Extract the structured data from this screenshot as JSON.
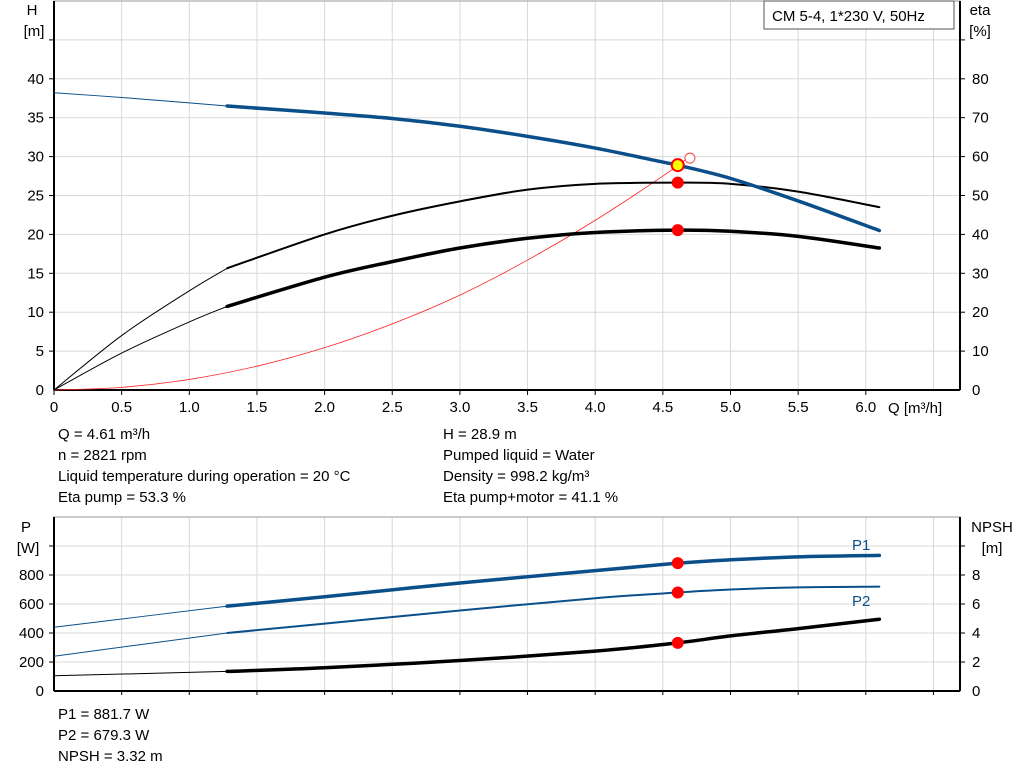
{
  "chart_data": [
    {
      "type": "line",
      "title_box": "CM 5-4, 1*230 V, 50Hz",
      "xlabel": "Q [m³/h]",
      "ylabel": "H",
      "yunit": "[m]",
      "y2label": "eta",
      "y2unit": "[%]",
      "xlim": [
        0,
        6.7
      ],
      "ylim": [
        0,
        50
      ],
      "y2lim": [
        0,
        100
      ],
      "xticks": [
        "0",
        "0.5",
        "1.0",
        "1.5",
        "2.0",
        "2.5",
        "3.0",
        "3.5",
        "4.0",
        "4.5",
        "5.0",
        "5.5",
        "6.0"
      ],
      "yticks": [
        0,
        5,
        10,
        15,
        20,
        25,
        30,
        35,
        40
      ],
      "y2ticks": [
        0,
        10,
        20,
        30,
        40,
        50,
        60,
        70,
        80
      ],
      "grid": true,
      "series": [
        {
          "axis": "H",
          "color": "#0b4f8a",
          "x": [
            0,
            0.5,
            1,
            1.28,
            2,
            2.5,
            3,
            3.5,
            4,
            4.5,
            4.61,
            5,
            5.5,
            6.1
          ],
          "y": [
            38.2,
            37.6,
            36.9,
            36.5,
            35.6,
            34.9,
            33.9,
            32.6,
            31.1,
            29.3,
            28.9,
            27.2,
            24.3,
            20.5
          ]
        },
        {
          "axis": "eta",
          "color": "#000000",
          "x": [
            0,
            0.5,
            1,
            1.28,
            2,
            2.5,
            3,
            3.5,
            4,
            4.61,
            5,
            5.5,
            6.1
          ],
          "y": [
            0,
            14,
            25.5,
            31.3,
            40,
            44.8,
            48.5,
            51.5,
            53,
            53.3,
            53,
            51,
            47
          ]
        },
        {
          "axis": "eta",
          "color": "#000000",
          "x": [
            0,
            0.5,
            1,
            1.28,
            2,
            2.5,
            3,
            3.5,
            4,
            4.61,
            5,
            5.5,
            6.1
          ],
          "y": [
            0,
            9.5,
            17.5,
            21.5,
            29,
            33,
            36.5,
            39,
            40.5,
            41.1,
            40.8,
            39.5,
            36.5
          ]
        },
        {
          "axis": "H",
          "color": "#ff2020",
          "x": [
            0,
            0.5,
            1,
            1.5,
            2,
            2.5,
            3,
            3.5,
            4,
            4.5,
            4.7
          ],
          "y": [
            0,
            0.34,
            1.36,
            3.06,
            5.44,
            8.5,
            12.2,
            16.7,
            21.8,
            27.5,
            30
          ]
        }
      ],
      "duty_point": {
        "Q": 4.61,
        "H": 28.9,
        "eta_pump": 53.3,
        "eta_total": 41.1
      }
    },
    {
      "type": "line",
      "ylabel": "P",
      "yunit": "[W]",
      "y2label": "NPSH",
      "y2unit": "[m]",
      "xlim": [
        0,
        6.7
      ],
      "ylim": [
        0,
        1200
      ],
      "y2lim": [
        0,
        12
      ],
      "yticks": [
        0,
        200,
        400,
        600,
        800
      ],
      "y2ticks": [
        0,
        2,
        4,
        6,
        8
      ],
      "grid": true,
      "series": [
        {
          "name": "P1",
          "axis": "P",
          "color": "#0b4f8a",
          "x": [
            0,
            1.28,
            2,
            3,
            4,
            4.61,
            5,
            5.5,
            6.1
          ],
          "y": [
            440,
            585,
            650,
            745,
            830,
            881.7,
            905,
            925,
            935
          ]
        },
        {
          "name": "P2",
          "axis": "P",
          "color": "#0b4f8a",
          "x": [
            0,
            1.28,
            2,
            3,
            4,
            4.61,
            5,
            5.5,
            6.1
          ],
          "y": [
            240,
            400,
            465,
            555,
            640,
            679.3,
            700,
            715,
            720
          ]
        },
        {
          "axis": "NPSH",
          "color": "#000000",
          "x": [
            0,
            1.28,
            2,
            3,
            4,
            4.61,
            5,
            5.5,
            6.1
          ],
          "y": [
            1.05,
            1.35,
            1.6,
            2.1,
            2.75,
            3.32,
            3.8,
            4.3,
            4.95
          ]
        }
      ]
    }
  ],
  "info_top": {
    "left": [
      "Q = 4.61 m³/h",
      "n = 2821 rpm",
      "Liquid temperature during operation = 20 °C",
      "Eta pump = 53.3 %"
    ],
    "right": [
      "H = 28.9 m",
      "Pumped liquid = Water",
      "Density = 998.2 kg/m³",
      "Eta pump+motor = 41.1 %"
    ]
  },
  "info_bottom": [
    "P1 = 881.7 W",
    "P2 = 679.3 W",
    "NPSH = 3.32 m"
  ]
}
